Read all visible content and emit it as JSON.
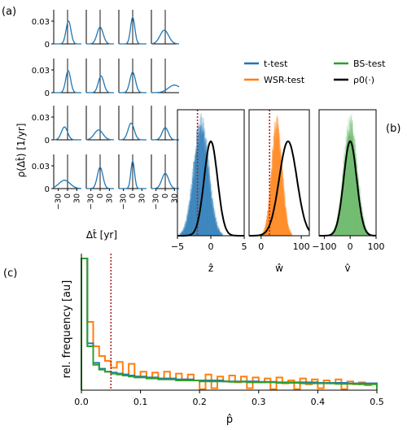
{
  "panel_labels": {
    "a": "(a)",
    "b": "(b)",
    "c": "(c)"
  },
  "colors": {
    "t": "#1f77b4",
    "wsr": "#ff7f0e",
    "bs": "#2ca02c",
    "rho": "#000000",
    "ref": "#b22222"
  },
  "chart_data": [
    {
      "id": "a",
      "type": "line",
      "grid": "4x4 small multiples",
      "ylabel": "ρ(Δt̂) [1/yr]",
      "xlabel": "Δt̂ [yr]",
      "yticks": [
        "0.03",
        "0"
      ],
      "xticks": [
        "−30",
        "0",
        "30"
      ],
      "ylim": [
        0,
        0.045
      ],
      "xlim": [
        -45,
        45
      ],
      "note": "vertical line at Δt̂ = 0",
      "curves": [
        [
          {
            "mu": 3,
            "s": 8,
            "h": 0.03
          },
          {
            "mu": 0,
            "s": 10,
            "h": 0.022
          },
          {
            "mu": 0,
            "s": 7,
            "h": 0.035
          },
          {
            "mu": -3,
            "s": 14,
            "h": 0.018
          }
        ],
        [
          {
            "mu": 2,
            "s": 8,
            "h": 0.029
          },
          {
            "mu": 3,
            "s": 9,
            "h": 0.022
          },
          {
            "mu": 0,
            "s": 9,
            "h": 0.027
          },
          {
            "mu": 30,
            "s": 20,
            "h": 0.01
          }
        ],
        [
          {
            "mu": -10,
            "s": 10,
            "h": 0.017
          },
          {
            "mu": -5,
            "s": 14,
            "h": 0.013
          },
          {
            "mu": -5,
            "s": 10,
            "h": 0.022
          },
          {
            "mu": 0,
            "s": 10,
            "h": 0.016
          }
        ],
        [
          {
            "mu": -10,
            "s": 18,
            "h": 0.011
          },
          {
            "mu": 0,
            "s": 9,
            "h": 0.028
          },
          {
            "mu": 0,
            "s": 6,
            "h": 0.036
          },
          {
            "mu": 0,
            "s": 11,
            "h": 0.02
          }
        ]
      ]
    },
    {
      "id": "b",
      "type": "histogram",
      "legend": [
        "t-test",
        "WSR-test",
        "BS-test",
        "ρ0(·)"
      ],
      "legend_placement": "top",
      "subplots": [
        {
          "xlabel": "ẑ",
          "xlim": [
            -5,
            5
          ],
          "xticks": [
            "−5",
            "0",
            "5"
          ],
          "ref_line": -2,
          "hist": {
            "mu": -1.5,
            "s": 1.1
          },
          "rho": {
            "mu": 0,
            "s": 1.0
          }
        },
        {
          "xlabel": "ŵ",
          "xlim": [
            -30,
            120
          ],
          "xticks": [
            "0",
            "100"
          ],
          "ref_line": 21,
          "hist": {
            "mu": 40,
            "s": 13
          },
          "rho": {
            "mu": 67,
            "s": 22
          }
        },
        {
          "xlabel": "v̂",
          "xlim": [
            -120,
            100
          ],
          "xticks": [
            "−100",
            "0",
            "100"
          ],
          "ref_line": null,
          "hist": {
            "mu": 0,
            "s": 26
          },
          "rho": {
            "mu": 0,
            "s": 25
          }
        }
      ]
    },
    {
      "id": "c",
      "type": "histogram",
      "xlabel": "p̂",
      "ylabel": "rel. frequency [au]",
      "xlim": [
        0,
        0.5
      ],
      "xticks": [
        "0.0",
        "0.1",
        "0.2",
        "0.3",
        "0.4",
        "0.5"
      ],
      "ref_line": 0.05,
      "series": [
        {
          "name": "t-test",
          "values": [
            13.5,
            4.8,
            2.8,
            2.2,
            1.9,
            1.8,
            1.7,
            1.6,
            1.5,
            1.4,
            1.4,
            1.3,
            1.3,
            1.2,
            1.2,
            1.2,
            1.1,
            1.1,
            1.1,
            1.0,
            1.0,
            1.0,
            1.0,
            1.0,
            0.9,
            0.9,
            0.9,
            0.9,
            0.9,
            0.9,
            0.85,
            0.85,
            0.85,
            0.8,
            0.8,
            0.8,
            0.8,
            0.8,
            0.8,
            0.8,
            0.75,
            0.75,
            0.75,
            0.75,
            0.75,
            0.7,
            0.7,
            0.7,
            0.7,
            0.7
          ]
        },
        {
          "name": "WSR-test",
          "values": [
            13.5,
            7.0,
            4.5,
            3.5,
            3.0,
            2.3,
            2.9,
            1.6,
            2.7,
            1.4,
            1.9,
            1.3,
            1.8,
            1.2,
            1.9,
            1.1,
            1.7,
            1.1,
            1.6,
            1.0,
            0.1,
            1.6,
            0.2,
            1.4,
            0.9,
            1.5,
            0.8,
            1.4,
            0.2,
            1.3,
            0.8,
            1.2,
            0.1,
            1.3,
            0.7,
            1.0,
            0.1,
            1.2,
            0.6,
            1.1,
            0.2,
            1.0,
            0.7,
            1.1,
            0.1,
            0.9,
            0.6,
            0.8,
            0.5,
            0.7
          ]
        },
        {
          "name": "BS-test",
          "values": [
            13.5,
            4.5,
            2.6,
            2.1,
            1.9,
            1.7,
            1.6,
            1.5,
            1.4,
            1.3,
            1.3,
            1.2,
            1.2,
            1.1,
            1.1,
            1.1,
            1.0,
            1.0,
            1.0,
            1.0,
            0.9,
            0.9,
            0.9,
            0.9,
            0.9,
            0.85,
            0.85,
            0.85,
            0.8,
            0.8,
            0.8,
            0.8,
            0.8,
            0.75,
            0.75,
            0.75,
            0.75,
            0.7,
            0.7,
            0.7,
            0.7,
            0.7,
            0.7,
            0.65,
            0.65,
            0.65,
            0.65,
            0.6,
            0.6,
            0.6
          ]
        }
      ]
    }
  ]
}
